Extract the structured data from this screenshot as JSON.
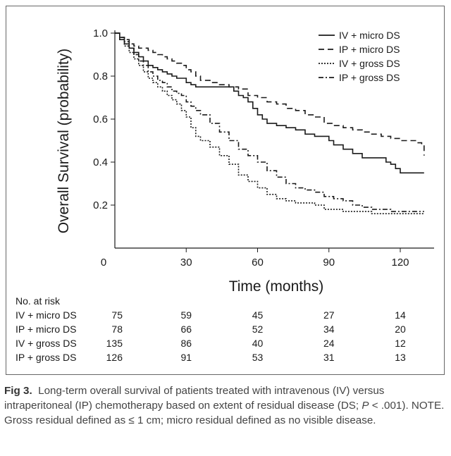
{
  "chart_data": {
    "type": "line",
    "title": "",
    "xlabel": "Time (months)",
    "ylabel": "Overall Survival (probability)",
    "xlim": [
      0,
      130
    ],
    "ylim": [
      0,
      1.0
    ],
    "x_ticks": [
      "0",
      "30",
      "60",
      "90",
      "120"
    ],
    "x_tick_values": [
      0,
      30,
      60,
      90,
      120
    ],
    "y_ticks": [
      "0.2",
      "0.4",
      "0.6",
      "0.8",
      "1.0"
    ],
    "y_tick_values": [
      0.2,
      0.4,
      0.6,
      0.8,
      1.0
    ],
    "grid": false,
    "legend_position": "top-right",
    "series": [
      {
        "name": "IV + micro DS",
        "dash": "solid",
        "x": [
          0,
          2,
          4,
          6,
          8,
          10,
          12,
          14,
          16,
          18,
          20,
          22,
          24,
          26,
          28,
          30,
          32,
          34,
          36,
          40,
          44,
          48,
          50,
          52,
          54,
          56,
          58,
          60,
          62,
          64,
          68,
          72,
          76,
          78,
          80,
          84,
          88,
          90,
          92,
          96,
          100,
          104,
          110,
          114,
          116,
          118,
          120,
          125,
          130
        ],
        "y": [
          1.0,
          0.97,
          0.95,
          0.93,
          0.91,
          0.89,
          0.87,
          0.85,
          0.84,
          0.83,
          0.82,
          0.81,
          0.8,
          0.79,
          0.79,
          0.77,
          0.76,
          0.75,
          0.75,
          0.75,
          0.75,
          0.75,
          0.73,
          0.71,
          0.7,
          0.68,
          0.65,
          0.62,
          0.6,
          0.58,
          0.57,
          0.56,
          0.55,
          0.55,
          0.53,
          0.52,
          0.52,
          0.5,
          0.48,
          0.46,
          0.44,
          0.42,
          0.42,
          0.4,
          0.39,
          0.37,
          0.35,
          0.35,
          0.35
        ]
      },
      {
        "name": "IP + micro DS",
        "dash": "long-dash",
        "x": [
          0,
          2,
          4,
          6,
          8,
          10,
          12,
          14,
          16,
          18,
          20,
          22,
          24,
          26,
          28,
          30,
          32,
          34,
          36,
          40,
          44,
          48,
          52,
          56,
          60,
          64,
          68,
          72,
          76,
          80,
          84,
          88,
          92,
          96,
          100,
          104,
          108,
          112,
          116,
          120,
          124,
          127,
          129,
          130
        ],
        "y": [
          1.0,
          0.98,
          0.97,
          0.95,
          0.94,
          0.93,
          0.93,
          0.92,
          0.91,
          0.9,
          0.89,
          0.88,
          0.87,
          0.86,
          0.85,
          0.83,
          0.82,
          0.8,
          0.78,
          0.77,
          0.76,
          0.75,
          0.74,
          0.71,
          0.7,
          0.68,
          0.67,
          0.65,
          0.64,
          0.62,
          0.61,
          0.58,
          0.57,
          0.56,
          0.55,
          0.54,
          0.53,
          0.52,
          0.51,
          0.5,
          0.5,
          0.49,
          0.48,
          0.43
        ]
      },
      {
        "name": "IV + gross DS",
        "dash": "dotted",
        "x": [
          0,
          2,
          4,
          6,
          8,
          10,
          12,
          14,
          16,
          18,
          20,
          22,
          24,
          26,
          28,
          30,
          32,
          34,
          36,
          40,
          44,
          48,
          52,
          56,
          60,
          64,
          68,
          72,
          76,
          80,
          84,
          88,
          92,
          96,
          100,
          104,
          108,
          112,
          116,
          120,
          124,
          128,
          130
        ],
        "y": [
          1.0,
          0.97,
          0.94,
          0.91,
          0.88,
          0.85,
          0.82,
          0.79,
          0.77,
          0.75,
          0.73,
          0.71,
          0.69,
          0.67,
          0.64,
          0.61,
          0.56,
          0.52,
          0.5,
          0.47,
          0.43,
          0.39,
          0.34,
          0.31,
          0.28,
          0.25,
          0.23,
          0.22,
          0.21,
          0.21,
          0.2,
          0.18,
          0.18,
          0.17,
          0.17,
          0.17,
          0.16,
          0.16,
          0.16,
          0.16,
          0.16,
          0.16,
          0.16
        ]
      },
      {
        "name": "IP + gross DS",
        "dash": "dash-dot",
        "x": [
          0,
          2,
          4,
          6,
          8,
          10,
          12,
          14,
          16,
          18,
          20,
          22,
          24,
          26,
          28,
          30,
          32,
          34,
          36,
          40,
          44,
          48,
          52,
          56,
          60,
          64,
          68,
          72,
          76,
          80,
          84,
          88,
          92,
          96,
          100,
          104,
          108,
          112,
          116,
          120,
          124,
          128,
          130
        ],
        "y": [
          1.0,
          0.98,
          0.96,
          0.93,
          0.9,
          0.87,
          0.85,
          0.82,
          0.8,
          0.78,
          0.77,
          0.75,
          0.73,
          0.72,
          0.71,
          0.68,
          0.66,
          0.64,
          0.62,
          0.58,
          0.54,
          0.5,
          0.46,
          0.43,
          0.4,
          0.36,
          0.33,
          0.3,
          0.28,
          0.27,
          0.26,
          0.24,
          0.23,
          0.22,
          0.2,
          0.19,
          0.18,
          0.18,
          0.17,
          0.17,
          0.17,
          0.17,
          0.17
        ]
      }
    ],
    "at_risk": {
      "header": "No. at risk",
      "time_points": [
        0,
        30,
        60,
        90,
        120
      ],
      "rows": [
        {
          "label": "IV + micro DS",
          "values": [
            "75",
            "59",
            "45",
            "27",
            "14"
          ]
        },
        {
          "label": "IP + micro DS",
          "values": [
            "78",
            "66",
            "52",
            "34",
            "20"
          ]
        },
        {
          "label": "IV + gross DS",
          "values": [
            "135",
            "86",
            "40",
            "24",
            "12"
          ]
        },
        {
          "label": "IP + gross DS",
          "values": [
            "126",
            "91",
            "53",
            "31",
            "13"
          ]
        }
      ]
    }
  },
  "caption": {
    "fig_label": "Fig 3.",
    "text_1": "Long-term overall survival of patients treated with intravenous (IV) versus intraperitoneal (IP) chemotherapy based on extent of residual disease (DS; ",
    "p_symbol": "P",
    "text_2": " < .001). NOTE. Gross residual defined as ≤ 1 cm; micro residual defined as no visible disease."
  },
  "colors": {
    "line": "#1a1a1a",
    "caption": "#444444"
  }
}
